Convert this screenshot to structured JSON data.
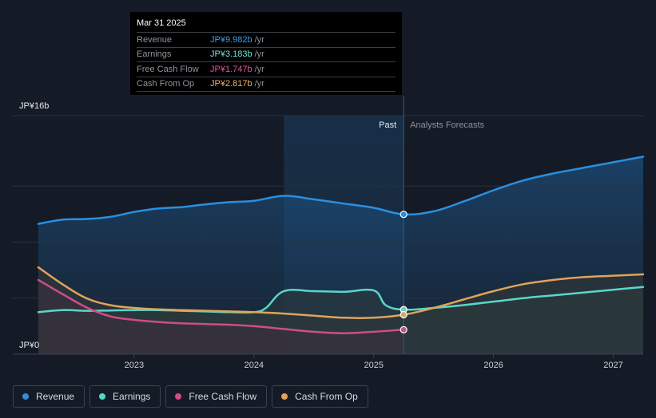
{
  "colors": {
    "background": "#151b26",
    "revenue": "#2b8fe0",
    "earnings": "#5ad6c8",
    "free_cash_flow": "#d04d85",
    "cash_from_op": "#e0a35a",
    "grid": "#2a313d",
    "axis_text": "#c9ced6"
  },
  "tooltip": {
    "date": "Mar 31 2025",
    "rows": [
      {
        "label": "Revenue",
        "value": "JP¥9.982b",
        "unit": "/yr",
        "color": "#3b9cf0"
      },
      {
        "label": "Earnings",
        "value": "JP¥3.183b",
        "unit": "/yr",
        "color": "#6fe3d6"
      },
      {
        "label": "Free Cash Flow",
        "value": "JP¥1.747b",
        "unit": "/yr",
        "color": "#e0579a"
      },
      {
        "label": "Cash From Op",
        "value": "JP¥2.817b",
        "unit": "/yr",
        "color": "#eeb066"
      }
    ]
  },
  "chart_data": {
    "type": "line",
    "title": "",
    "xlabel": "",
    "ylabel": "",
    "y_top_label": "JP¥16b",
    "y_bottom_label": "JP¥0",
    "ylim": [
      0,
      16
    ],
    "xlim": [
      2022.2,
      2027.25
    ],
    "x_ticks": [
      {
        "value": 2023.0,
        "label": "2023"
      },
      {
        "value": 2024.0,
        "label": "2024"
      },
      {
        "value": 2025.0,
        "label": "2025"
      },
      {
        "value": 2026.0,
        "label": "2026"
      },
      {
        "value": 2027.0,
        "label": "2027"
      }
    ],
    "past_label": "Past",
    "forecast_label": "Analysts Forecasts",
    "divider_x": 2025.25,
    "highlight_range": [
      2024.25,
      2025.25
    ],
    "series": [
      {
        "name": "Revenue",
        "key": "revenue",
        "x": [
          2022.2,
          2022.4,
          2022.6,
          2022.8,
          2023.0,
          2023.2,
          2023.4,
          2023.6,
          2023.8,
          2024.0,
          2024.25,
          2024.5,
          2024.75,
          2025.0,
          2025.25,
          2025.5,
          2025.75,
          2026.0,
          2026.25,
          2026.5,
          2026.75,
          2027.0,
          2027.25
        ],
        "y": [
          9.3,
          9.6,
          9.65,
          9.8,
          10.15,
          10.4,
          10.5,
          10.7,
          10.85,
          10.95,
          11.3,
          11.05,
          10.75,
          10.45,
          9.98,
          10.2,
          10.9,
          11.7,
          12.4,
          12.9,
          13.3,
          13.7,
          14.1
        ]
      },
      {
        "name": "Earnings",
        "key": "earnings",
        "x": [
          2022.2,
          2022.4,
          2022.6,
          2022.8,
          2023.0,
          2023.2,
          2023.4,
          2023.6,
          2023.8,
          2024.0,
          2024.1,
          2024.25,
          2024.5,
          2024.75,
          2025.0,
          2025.1,
          2025.25,
          2025.5,
          2025.75,
          2026.0,
          2026.25,
          2026.5,
          2026.75,
          2027.0,
          2027.25
        ],
        "y": [
          3.0,
          3.15,
          3.1,
          3.12,
          3.15,
          3.15,
          3.1,
          3.05,
          3.0,
          3.0,
          3.3,
          4.5,
          4.5,
          4.45,
          4.55,
          3.5,
          3.18,
          3.3,
          3.5,
          3.75,
          4.0,
          4.2,
          4.4,
          4.6,
          4.8
        ]
      },
      {
        "name": "Free Cash Flow",
        "key": "free_cash_flow",
        "x": [
          2022.2,
          2022.4,
          2022.6,
          2022.8,
          2023.0,
          2023.2,
          2023.4,
          2023.6,
          2023.8,
          2024.0,
          2024.25,
          2024.5,
          2024.75,
          2025.0,
          2025.25
        ],
        "y": [
          5.3,
          4.3,
          3.35,
          2.7,
          2.45,
          2.3,
          2.2,
          2.15,
          2.1,
          2.0,
          1.8,
          1.6,
          1.5,
          1.6,
          1.75
        ]
      },
      {
        "name": "Cash From Op",
        "key": "cash_from_op",
        "x": [
          2022.2,
          2022.4,
          2022.6,
          2022.8,
          2023.0,
          2023.2,
          2023.4,
          2023.6,
          2023.8,
          2024.0,
          2024.25,
          2024.5,
          2024.75,
          2025.0,
          2025.25,
          2025.5,
          2025.75,
          2026.0,
          2026.25,
          2026.5,
          2026.75,
          2027.0,
          2027.25
        ],
        "y": [
          6.2,
          5.0,
          4.0,
          3.5,
          3.3,
          3.2,
          3.15,
          3.1,
          3.05,
          3.0,
          2.9,
          2.75,
          2.6,
          2.6,
          2.82,
          3.3,
          3.9,
          4.5,
          5.0,
          5.3,
          5.5,
          5.6,
          5.7
        ]
      }
    ],
    "markers": [
      {
        "series": "revenue",
        "x": 2025.25,
        "y": 9.982
      },
      {
        "series": "earnings",
        "x": 2025.25,
        "y": 3.183
      },
      {
        "series": "free_cash_flow",
        "x": 2025.25,
        "y": 1.747
      },
      {
        "series": "cash_from_op",
        "x": 2025.25,
        "y": 2.817
      }
    ]
  },
  "legend": [
    {
      "label": "Revenue",
      "color": "#2b8fe0"
    },
    {
      "label": "Earnings",
      "color": "#5ad6c8"
    },
    {
      "label": "Free Cash Flow",
      "color": "#d04d85"
    },
    {
      "label": "Cash From Op",
      "color": "#e0a35a"
    }
  ]
}
